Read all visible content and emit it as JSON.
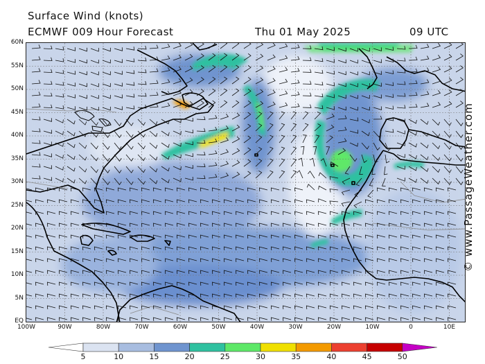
{
  "header": {
    "line1": "Surface Wind (knots)",
    "model": "ECMWF 009 Hour Forecast",
    "date": "Thu 01 May 2025",
    "time": "09 UTC"
  },
  "map": {
    "lat_labels": [
      "60N",
      "55N",
      "50N",
      "45N",
      "40N",
      "35N",
      "30N",
      "25N",
      "20N",
      "15N",
      "10N",
      "5N",
      "EQ"
    ],
    "lon_labels": [
      "100W",
      "90W",
      "80W",
      "70W",
      "60W",
      "50W",
      "40W",
      "30W",
      "20W",
      "10W",
      "0",
      "10E"
    ]
  },
  "credit": "© www.PassageWeather.com",
  "legend": {
    "labels": [
      "5",
      "10",
      "15",
      "20",
      "25",
      "30",
      "35",
      "40",
      "45",
      "50"
    ],
    "colors": [
      "#ffffff",
      "#dbe3f1",
      "#a8bde0",
      "#6f94cf",
      "#2fc1a0",
      "#5ee868",
      "#f0e000",
      "#f39a00",
      "#ec4030",
      "#c60000",
      "#c400c4"
    ]
  }
}
